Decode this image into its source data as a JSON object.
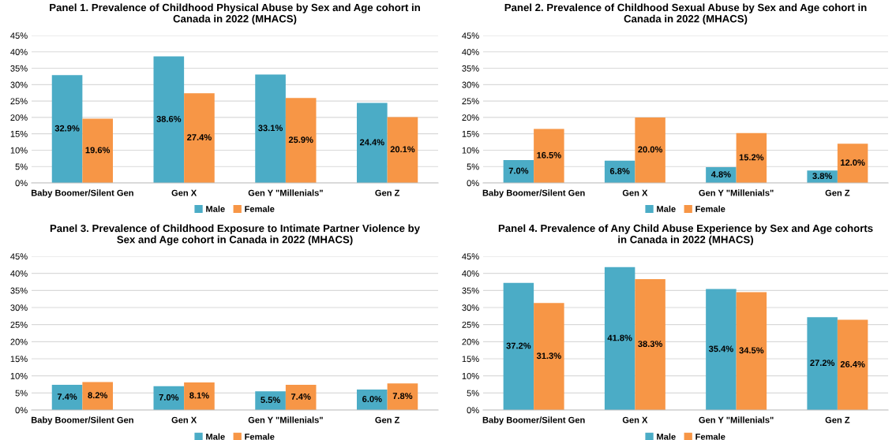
{
  "chart_data": [
    {
      "type": "bar",
      "title": "Panel 1. Prevalence of Childhood Physical Abuse by Sex and Age cohort in Canada in 2022 (MHACS)",
      "categories": [
        "Baby Boomer/Silent Gen",
        "Gen X",
        "Gen Y \"Millenials\"",
        "Gen Z"
      ],
      "series": [
        {
          "name": "Male",
          "color": "#4bacc6",
          "values": [
            32.9,
            38.6,
            33.1,
            24.4
          ],
          "value_labels": [
            "32.9%",
            "38.6%",
            "33.1%",
            "24.4%"
          ]
        },
        {
          "name": "Female",
          "color": "#f79646",
          "values": [
            19.6,
            27.4,
            25.9,
            20.1
          ],
          "value_labels": [
            "19.6%",
            "27.4%",
            "25.9%",
            "20.1%"
          ]
        }
      ],
      "ylim": [
        0,
        45
      ],
      "yticks": [
        {
          "value": 0,
          "label": "0%"
        },
        {
          "value": 5,
          "label": "5%"
        },
        {
          "value": 10,
          "label": "10%"
        },
        {
          "value": 15,
          "label": "15%"
        },
        {
          "value": 20,
          "label": "20%"
        },
        {
          "value": 25,
          "label": "25%"
        },
        {
          "value": 30,
          "label": "30%"
        },
        {
          "value": 35,
          "label": "35%"
        },
        {
          "value": 40,
          "label": "40%"
        },
        {
          "value": 45,
          "label": "45%"
        }
      ],
      "grid": "y",
      "legend": "bottom"
    },
    {
      "type": "bar",
      "title": "Panel 2. Prevalence of Childhood Sexual Abuse by Sex and Age cohort in Canada in 2022 (MHACS)",
      "categories": [
        "Baby Boomer/Silent Gen",
        "Gen X",
        "Gen Y \"Millenials\"",
        "Gen Z"
      ],
      "series": [
        {
          "name": "Male",
          "color": "#4bacc6",
          "values": [
            7.0,
            6.8,
            4.8,
            3.8
          ],
          "value_labels": [
            "7.0%",
            "6.8%",
            "4.8%",
            "3.8%"
          ]
        },
        {
          "name": "Female",
          "color": "#f79646",
          "values": [
            16.5,
            20.0,
            15.2,
            12.0
          ],
          "value_labels": [
            "16.5%",
            "20.0%",
            "15.2%",
            "12.0%"
          ]
        }
      ],
      "ylim": [
        0,
        45
      ],
      "yticks": [
        {
          "value": 0,
          "label": "0%"
        },
        {
          "value": 5,
          "label": "5%"
        },
        {
          "value": 10,
          "label": "10%"
        },
        {
          "value": 15,
          "label": "15%"
        },
        {
          "value": 20,
          "label": "20%"
        },
        {
          "value": 25,
          "label": "25%"
        },
        {
          "value": 30,
          "label": "30%"
        },
        {
          "value": 35,
          "label": "35%"
        },
        {
          "value": 40,
          "label": "40%"
        },
        {
          "value": 45,
          "label": "45%"
        }
      ],
      "grid": "y",
      "legend": "bottom"
    },
    {
      "type": "bar",
      "title": "Panel 3. Prevalence of Childhood Exposure to Intimate Partner Violence by Sex and Age cohort in Canada in 2022 (MHACS)",
      "categories": [
        "Baby Boomer/Silent Gen",
        "Gen X",
        "Gen Y \"Millenials\"",
        "Gen Z"
      ],
      "series": [
        {
          "name": "Male",
          "color": "#4bacc6",
          "values": [
            7.4,
            7.0,
            5.5,
            6.0
          ],
          "value_labels": [
            "7.4%",
            "7.0%",
            "5.5%",
            "6.0%"
          ]
        },
        {
          "name": "Female",
          "color": "#f79646",
          "values": [
            8.2,
            8.1,
            7.4,
            7.8
          ],
          "value_labels": [
            "8.2%",
            "8.1%",
            "7.4%",
            "7.8%"
          ]
        }
      ],
      "ylim": [
        0,
        45
      ],
      "yticks": [
        {
          "value": 0,
          "label": "0%"
        },
        {
          "value": 5,
          "label": "5%"
        },
        {
          "value": 10,
          "label": "10%"
        },
        {
          "value": 15,
          "label": "15%"
        },
        {
          "value": 20,
          "label": "20%"
        },
        {
          "value": 25,
          "label": "25%"
        },
        {
          "value": 30,
          "label": "30%"
        },
        {
          "value": 35,
          "label": "35%"
        },
        {
          "value": 40,
          "label": "40%"
        },
        {
          "value": 45,
          "label": "45%"
        }
      ],
      "grid": "y",
      "legend": "bottom"
    },
    {
      "type": "bar",
      "title": "Panel 4. Prevalence of Any Child Abuse Experience by Sex and Age cohorts in Canada in 2022 (MHACS)",
      "categories": [
        "Baby Boomer/Silent Gen",
        "Gen X",
        "Gen Y \"Millenials\"",
        "Gen Z"
      ],
      "series": [
        {
          "name": "Male",
          "color": "#4bacc6",
          "values": [
            37.2,
            41.8,
            35.4,
            27.2
          ],
          "value_labels": [
            "37.2%",
            "41.8%",
            "35.4%",
            "27.2%"
          ]
        },
        {
          "name": "Female",
          "color": "#f79646",
          "values": [
            31.3,
            38.3,
            34.5,
            26.4
          ],
          "value_labels": [
            "31.3%",
            "38.3%",
            "34.5%",
            "26.4%"
          ]
        }
      ],
      "ylim": [
        0,
        45
      ],
      "yticks": [
        {
          "value": 0,
          "label": "0%"
        },
        {
          "value": 5,
          "label": "5%"
        },
        {
          "value": 10,
          "label": "10%"
        },
        {
          "value": 15,
          "label": "15%"
        },
        {
          "value": 20,
          "label": "20%"
        },
        {
          "value": 25,
          "label": "25%"
        },
        {
          "value": 30,
          "label": "30%"
        },
        {
          "value": 35,
          "label": "35%"
        },
        {
          "value": 40,
          "label": "40%"
        },
        {
          "value": 45,
          "label": "45%"
        }
      ],
      "grid": "y",
      "legend": "bottom"
    }
  ]
}
